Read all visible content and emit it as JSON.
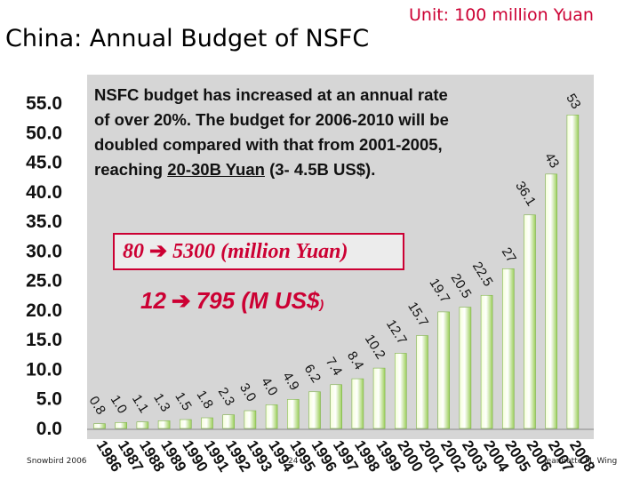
{
  "slide": {
    "title": "China: Annual Budget of NSFC",
    "unit": "Unit: 100 million Yuan"
  },
  "annotation": {
    "line1": "NSFC budget has increased at an annual rate",
    "line2": "of over 20%. The budget for 2006-2010 will be",
    "line3": "doubled compared with that from 2001-2005,",
    "line4_prefix": "reaching ",
    "line4_highlight": "20-30B Yuan",
    "line4_suffix": " (3- 4.5B US$).",
    "yuan_from": "80",
    "yuan_to": "5300 (million Yuan)",
    "usd_from": "12",
    "usd_to": "795 (M US$",
    "usd_close": ")"
  },
  "footer": {
    "left": "Snowbird 2006",
    "center": "24",
    "right": "Jeannette M. Wing"
  },
  "colors": {
    "bar_light": "#f4ffd8",
    "bar_dark": "#9ccf5a",
    "accent": "#cc0033",
    "plot_bg": "#d6d6d6"
  },
  "chart_data": {
    "type": "bar",
    "categories": [
      "1986",
      "1987",
      "1988",
      "1989",
      "1990",
      "1991",
      "1992",
      "1993",
      "1994",
      "1995",
      "1996",
      "1997",
      "1998",
      "1999",
      "2000",
      "2001",
      "2002",
      "2003",
      "2004",
      "2005",
      "2006",
      "2007",
      "2008"
    ],
    "values": [
      0.8,
      1.0,
      1.1,
      1.3,
      1.5,
      1.8,
      2.3,
      3.0,
      4.0,
      4.9,
      6.2,
      7.4,
      8.4,
      10.2,
      12.7,
      15.7,
      19.7,
      20.5,
      22.5,
      27,
      36.1,
      43,
      53
    ],
    "data_labels": [
      "0.8",
      "1.0",
      "1.1",
      "1.3",
      "1.5",
      "1.8",
      "2.3",
      "3.0",
      "4.0",
      "4.9",
      "6.2",
      "7.4",
      "8.4",
      "10.2",
      "12.7",
      "15.7",
      "19.7",
      "20.5",
      "22.5",
      "27",
      "36.1",
      "43",
      "53"
    ],
    "yticks": [
      "0.0",
      "5.0",
      "10.0",
      "15.0",
      "20.0",
      "25.0",
      "30.0",
      "35.0",
      "40.0",
      "45.0",
      "50.0",
      "55.0"
    ],
    "ylim": [
      0,
      55
    ],
    "title": "China: Annual Budget of NSFC",
    "xlabel": "",
    "ylabel": "",
    "grid": false,
    "legend": "none"
  }
}
